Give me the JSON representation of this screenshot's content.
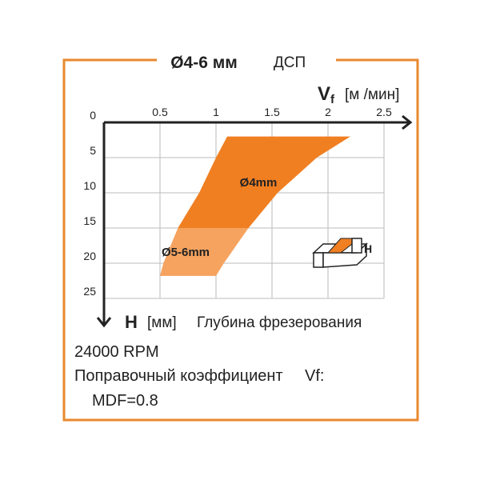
{
  "chart_data": {
    "type": "range",
    "title": "Ø4-6 мм",
    "subtitle": "ДСП",
    "x_label": {
      "symbol": "V",
      "sub": "f",
      "unit": "[м /мин]"
    },
    "y_label": {
      "symbol": "H",
      "unit": "[мм]",
      "text": "Глубина фрезерования"
    },
    "xlim": [
      0,
      2.5
    ],
    "xticks": [
      0.5,
      1,
      1.5,
      2,
      2.5
    ],
    "ylim": [
      0,
      25
    ],
    "yticks": [
      0,
      5,
      10,
      15,
      20,
      25
    ],
    "y_inverted": true,
    "grid": true,
    "series": [
      {
        "name": "Ø4mm",
        "color": "#f07f22",
        "depth": [
          2,
          5,
          10,
          15
        ],
        "vmin": [
          1.1,
          1.0,
          0.85,
          0.66
        ],
        "vmax": [
          2.2,
          1.9,
          1.55,
          1.29
        ]
      },
      {
        "name": "Ø5-6mm",
        "color": "#f5a35f",
        "depth": [
          15,
          20,
          21.8
        ],
        "vmin": [
          0.66,
          0.53,
          0.5
        ],
        "vmax": [
          1.29,
          1.07,
          1.0
        ]
      }
    ],
    "icon_label": "H",
    "notes": {
      "rpm": "24000 RPM",
      "factor": "Поправочный коэффициент",
      "factor_symbol": "Vf:",
      "mdf": "MDF=0.8"
    }
  }
}
